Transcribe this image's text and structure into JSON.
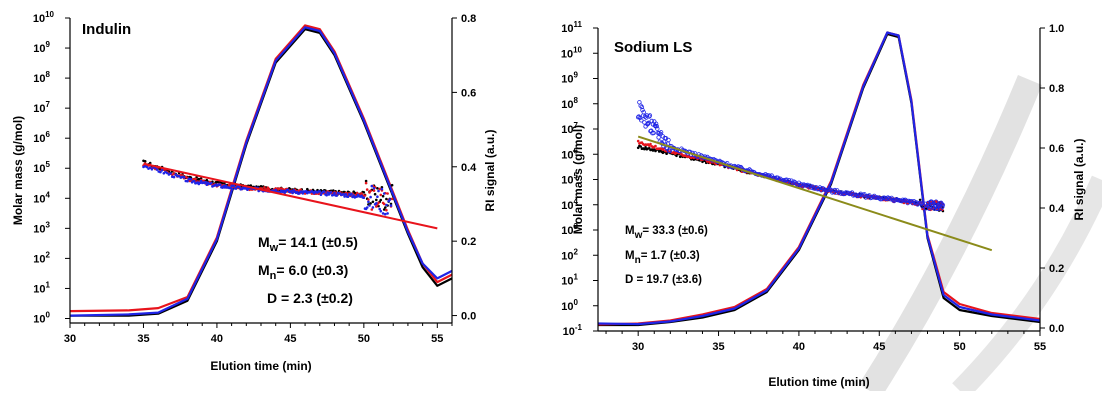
{
  "colors": {
    "black": "#000000",
    "red": "#e8141c",
    "blue": "#1f24e6",
    "olive": "#8b8b1a",
    "watermark": "#d9d9d9"
  },
  "chart_data": [
    {
      "type": "scatter",
      "title": "Indulin",
      "xlabel": "Elution time (min)",
      "ylabel": "Molar mass (g/mol)",
      "y2label": "RI signal (a.u.)",
      "xlim": [
        30,
        56
      ],
      "xticks": [
        "30",
        "35",
        "40",
        "45",
        "50",
        "55"
      ],
      "ylim_log10": [
        -0.15,
        10
      ],
      "yticks": [
        "10",
        "10",
        "10",
        "10",
        "10",
        "10",
        "10",
        "10",
        "10",
        "10",
        "10"
      ],
      "ytick_exponents": [
        "0",
        "1",
        "2",
        "3",
        "4",
        "5",
        "6",
        "7",
        "8",
        "9",
        "10"
      ],
      "y2lim": [
        -0.02,
        0.8
      ],
      "y2ticks": [
        "0.0",
        "0.2",
        "0.4",
        "0.6",
        "0.8"
      ],
      "annotations": [
        {
          "symbol": "M",
          "sub": "w",
          "text": "= 14.1 (±0.5)"
        },
        {
          "symbol": "M",
          "sub": "n",
          "text": "= 6.0  (±0.3)"
        },
        {
          "symbol": "",
          "sub": "",
          "text": "D = 2.3 (±0.2)"
        }
      ],
      "ri_series": [
        {
          "color": "black",
          "points": [
            [
              30,
              0.0
            ],
            [
              34,
              0.0
            ],
            [
              36,
              0.005
            ],
            [
              38,
              0.04
            ],
            [
              40,
              0.2
            ],
            [
              42,
              0.46
            ],
            [
              44,
              0.68
            ],
            [
              46,
              0.77
            ],
            [
              47,
              0.76
            ],
            [
              48,
              0.7
            ],
            [
              50,
              0.52
            ],
            [
              52,
              0.32
            ],
            [
              53,
              0.22
            ],
            [
              54,
              0.13
            ],
            [
              55,
              0.08
            ],
            [
              56,
              0.1
            ]
          ]
        },
        {
          "color": "red",
          "points": [
            [
              30,
              0.012
            ],
            [
              34,
              0.014
            ],
            [
              36,
              0.02
            ],
            [
              38,
              0.05
            ],
            [
              40,
              0.21
            ],
            [
              42,
              0.47
            ],
            [
              44,
              0.69
            ],
            [
              46,
              0.78
            ],
            [
              47,
              0.77
            ],
            [
              48,
              0.71
            ],
            [
              50,
              0.53
            ],
            [
              52,
              0.33
            ],
            [
              53,
              0.23
            ],
            [
              54,
              0.14
            ],
            [
              55,
              0.09
            ],
            [
              56,
              0.11
            ]
          ]
        },
        {
          "color": "blue",
          "points": [
            [
              30,
              0.0
            ],
            [
              34,
              0.003
            ],
            [
              36,
              0.008
            ],
            [
              38,
              0.045
            ],
            [
              40,
              0.205
            ],
            [
              42,
              0.465
            ],
            [
              44,
              0.685
            ],
            [
              46,
              0.775
            ],
            [
              47,
              0.765
            ],
            [
              48,
              0.705
            ],
            [
              50,
              0.525
            ],
            [
              52,
              0.325
            ],
            [
              53,
              0.225
            ],
            [
              54,
              0.14
            ],
            [
              55,
              0.1
            ],
            [
              56,
              0.12
            ]
          ]
        }
      ],
      "mass_series": [
        {
          "color": "black",
          "points": [
            [
              35,
              5.2
            ],
            [
              38,
              4.7
            ],
            [
              40,
              4.5
            ],
            [
              42,
              4.38
            ],
            [
              44,
              4.3
            ],
            [
              46,
              4.25
            ],
            [
              48,
              4.2
            ],
            [
              50,
              4.15
            ],
            [
              52,
              4.0
            ]
          ]
        },
        {
          "color": "red",
          "points": [
            [
              35,
              5.15
            ],
            [
              38,
              4.65
            ],
            [
              40,
              4.45
            ],
            [
              42,
              4.35
            ],
            [
              44,
              4.28
            ],
            [
              46,
              4.22
            ],
            [
              48,
              4.18
            ],
            [
              50,
              4.1
            ],
            [
              52,
              3.9
            ]
          ]
        },
        {
          "color": "blue",
          "points": [
            [
              35,
              5.1
            ],
            [
              38,
              4.6
            ],
            [
              40,
              4.42
            ],
            [
              42,
              4.32
            ],
            [
              44,
              4.26
            ],
            [
              46,
              4.2
            ],
            [
              48,
              4.15
            ],
            [
              50,
              4.05
            ],
            [
              52,
              3.85
            ]
          ]
        }
      ],
      "fit_line": {
        "color": "red",
        "points": [
          [
            35,
            5.15
          ],
          [
            55,
            3.0
          ]
        ]
      }
    },
    {
      "type": "scatter",
      "title": "Sodium LS",
      "xlabel": "Elution time (min)",
      "ylabel": "Molar mass (g/mol)",
      "y2label": "RI signal (a.u.)",
      "xlim": [
        27.5,
        55
      ],
      "xticks": [
        "30",
        "35",
        "40",
        "45",
        "50",
        "55"
      ],
      "ylim_log10": [
        -1,
        11
      ],
      "yticks": [
        "10",
        "10",
        "10",
        "10",
        "10",
        "10",
        "10",
        "10",
        "10",
        "10",
        "10",
        "10",
        "10"
      ],
      "ytick_exponents": [
        "-1",
        "0",
        "1",
        "2",
        "3",
        "4",
        "5",
        "6",
        "7",
        "8",
        "9",
        "10",
        "11"
      ],
      "y2lim": [
        -0.01,
        1.0
      ],
      "y2ticks": [
        "0.0",
        "0.2",
        "0.4",
        "0.6",
        "0.8",
        "1.0"
      ],
      "annotations": [
        {
          "symbol": "M",
          "sub": "w",
          "text": "= 33.3 (±0.6)"
        },
        {
          "symbol": "M",
          "sub": "n",
          "text": "= 1.7  (±0.3)"
        },
        {
          "symbol": "",
          "sub": "",
          "text": "D = 19.7 (±3.6)"
        }
      ],
      "ri_series": [
        {
          "color": "black",
          "points": [
            [
              27.5,
              0.01
            ],
            [
              30,
              0.01
            ],
            [
              32,
              0.02
            ],
            [
              34,
              0.035
            ],
            [
              36,
              0.06
            ],
            [
              38,
              0.12
            ],
            [
              40,
              0.26
            ],
            [
              42,
              0.48
            ],
            [
              44,
              0.8
            ],
            [
              45.5,
              0.98
            ],
            [
              46.2,
              0.97
            ],
            [
              47,
              0.75
            ],
            [
              48,
              0.3
            ],
            [
              49,
              0.1
            ],
            [
              50,
              0.06
            ],
            [
              52,
              0.04
            ],
            [
              55,
              0.02
            ]
          ]
        },
        {
          "color": "red",
          "points": [
            [
              27.5,
              0.012
            ],
            [
              30,
              0.015
            ],
            [
              32,
              0.025
            ],
            [
              34,
              0.045
            ],
            [
              36,
              0.07
            ],
            [
              38,
              0.13
            ],
            [
              40,
              0.27
            ],
            [
              42,
              0.49
            ],
            [
              44,
              0.81
            ],
            [
              45.5,
              0.985
            ],
            [
              46.2,
              0.975
            ],
            [
              47,
              0.76
            ],
            [
              48,
              0.31
            ],
            [
              49,
              0.12
            ],
            [
              50,
              0.08
            ],
            [
              52,
              0.05
            ],
            [
              55,
              0.03
            ]
          ]
        },
        {
          "color": "blue",
          "points": [
            [
              27.5,
              0.015
            ],
            [
              30,
              0.013
            ],
            [
              32,
              0.022
            ],
            [
              34,
              0.04
            ],
            [
              36,
              0.065
            ],
            [
              38,
              0.125
            ],
            [
              40,
              0.265
            ],
            [
              42,
              0.485
            ],
            [
              44,
              0.805
            ],
            [
              45.5,
              0.985
            ],
            [
              46.2,
              0.975
            ],
            [
              47,
              0.755
            ],
            [
              48,
              0.305
            ],
            [
              49,
              0.11
            ],
            [
              50,
              0.07
            ],
            [
              52,
              0.045
            ],
            [
              55,
              0.025
            ]
          ]
        }
      ],
      "mass_series": [
        {
          "color": "black",
          "points": [
            [
              30,
              6.3
            ],
            [
              32,
              6.05
            ],
            [
              34,
              5.75
            ],
            [
              36,
              5.45
            ],
            [
              38,
              5.1
            ],
            [
              40,
              4.8
            ],
            [
              42,
              4.55
            ],
            [
              44,
              4.35
            ],
            [
              46,
              4.2
            ],
            [
              48,
              4.0
            ],
            [
              49,
              3.9
            ]
          ]
        },
        {
          "color": "red",
          "points": [
            [
              30,
              6.5
            ],
            [
              32,
              6.1
            ],
            [
              34,
              5.8
            ],
            [
              36,
              5.45
            ],
            [
              38,
              5.1
            ],
            [
              40,
              4.78
            ],
            [
              42,
              4.53
            ],
            [
              44,
              4.33
            ],
            [
              46,
              4.18
            ],
            [
              48,
              3.98
            ],
            [
              49,
              3.95
            ]
          ]
        },
        {
          "color": "blue",
          "points": [
            [
              30,
              7.8
            ],
            [
              31,
              7.0
            ],
            [
              32,
              6.3
            ],
            [
              34,
              5.9
            ],
            [
              36,
              5.5
            ],
            [
              38,
              5.15
            ],
            [
              40,
              4.82
            ],
            [
              42,
              4.55
            ],
            [
              44,
              4.36
            ],
            [
              46,
              4.2
            ],
            [
              48,
              4.0
            ],
            [
              49,
              3.9
            ]
          ]
        }
      ],
      "fit_line": {
        "color": "olive",
        "points": [
          [
            30,
            6.7
          ],
          [
            52,
            2.2
          ]
        ]
      }
    }
  ]
}
